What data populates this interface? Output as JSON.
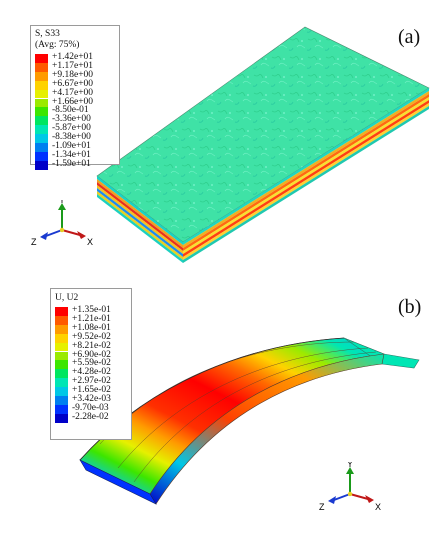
{
  "panel_a": {
    "label": "(a)",
    "legend": {
      "title_line1": "S, S33",
      "title_line2": "(Avg: 75%)",
      "entries": [
        {
          "value": "+1.42e+01",
          "color": "#ff0000"
        },
        {
          "value": "+1.17e+01",
          "color": "#ff5a00"
        },
        {
          "value": "+9.18e+00",
          "color": "#ff9b00"
        },
        {
          "value": "+6.67e+00",
          "color": "#ffd200"
        },
        {
          "value": "+4.17e+00",
          "color": "#e6f000"
        },
        {
          "value": "+1.66e+00",
          "color": "#9bea00"
        },
        {
          "value": "-8.50e-01",
          "color": "#3ce600"
        },
        {
          "value": "-3.36e+00",
          "color": "#00e660"
        },
        {
          "value": "-5.87e+00",
          "color": "#00e6b4"
        },
        {
          "value": "-8.38e+00",
          "color": "#00c8e6"
        },
        {
          "value": "-1.09e+01",
          "color": "#0080f0"
        },
        {
          "value": "-1.34e+01",
          "color": "#0032ff"
        },
        {
          "value": "-1.59e+01",
          "color": "#0000c8"
        }
      ]
    },
    "triad": {
      "y": "Y",
      "x": "X",
      "z": "Z"
    }
  },
  "panel_b": {
    "label": "(b)",
    "legend": {
      "title_line1": "U, U2",
      "entries": [
        {
          "value": "+1.35e-01",
          "color": "#ff0000"
        },
        {
          "value": "+1.21e-01",
          "color": "#ff5a00"
        },
        {
          "value": "+1.08e-01",
          "color": "#ff9b00"
        },
        {
          "value": "+9.52e-02",
          "color": "#ffd200"
        },
        {
          "value": "+8.21e-02",
          "color": "#e6f000"
        },
        {
          "value": "+6.90e-02",
          "color": "#9bea00"
        },
        {
          "value": "+5.59e-02",
          "color": "#3ce600"
        },
        {
          "value": "+4.28e-02",
          "color": "#00e660"
        },
        {
          "value": "+2.97e-02",
          "color": "#00e6b4"
        },
        {
          "value": "+1.65e-02",
          "color": "#00c8e6"
        },
        {
          "value": "+3.42e-03",
          "color": "#0080f0"
        },
        {
          "value": "-9.70e-03",
          "color": "#0032ff"
        },
        {
          "value": "-2.28e-02",
          "color": "#0000c8"
        }
      ]
    },
    "triad": {
      "y": "Y",
      "x": "X",
      "z": "Z"
    }
  }
}
